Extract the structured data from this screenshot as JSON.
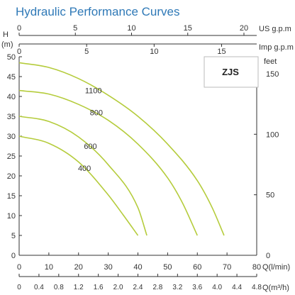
{
  "chart_data": {
    "type": "line",
    "title": "Hydraulic Performance Curves",
    "model_label": "ZJS",
    "xlabel": "Q(l/min)",
    "ylabel": "H (m)",
    "xlim": [
      0,
      80
    ],
    "ylim": [
      0,
      50
    ],
    "x_ticks": [
      "0",
      "10",
      "20",
      "30",
      "40",
      "50",
      "60",
      "70",
      "80"
    ],
    "y_ticks": [
      "0",
      "5",
      "10",
      "15",
      "20",
      "25",
      "30",
      "35",
      "40",
      "45",
      "50"
    ],
    "secondary_x_axis": {
      "label": "Q(m³/h)",
      "scale_per_primary": 0.06,
      "ticks": [
        "0",
        "0.4",
        "0.8",
        "1.2",
        "1.6",
        "2.0",
        "2.4",
        "2.8",
        "3.2",
        "3.6",
        "4.0",
        "4.4",
        "4.8"
      ]
    },
    "top_axis_us": {
      "label": "US g.p.m",
      "scale_per_primary": 0.2642,
      "ticks": [
        "0",
        "5",
        "10",
        "15",
        "20"
      ]
    },
    "top_axis_imp": {
      "label": "Imp g.p.m",
      "scale_per_primary": 0.22,
      "ticks": [
        "0",
        "5",
        "10",
        "15"
      ]
    },
    "right_axis": {
      "label": "feet",
      "scale_per_primary": 3.2808,
      "ticks": [
        "0",
        "50",
        "100",
        "150"
      ]
    },
    "grid": false,
    "series": [
      {
        "name": "400",
        "label_at": [
          22,
          22
        ],
        "x": [
          0,
          10,
          20,
          30,
          35,
          40
        ],
        "y": [
          30,
          28.2,
          23.5,
          15.2,
          10.2,
          5
        ]
      },
      {
        "name": "600",
        "label_at": [
          24,
          27.5
        ],
        "x": [
          0,
          10,
          20,
          30,
          40,
          43
        ],
        "y": [
          35,
          33.7,
          29.8,
          22.8,
          12,
          5
        ]
      },
      {
        "name": "800",
        "label_at": [
          26,
          36
        ],
        "x": [
          0,
          10,
          20,
          30,
          40,
          50,
          55,
          60
        ],
        "y": [
          41.5,
          40.6,
          38,
          34,
          28,
          19.5,
          13.2,
          5
        ]
      },
      {
        "name": "1100",
        "label_at": [
          25,
          41.5
        ],
        "x": [
          0,
          10,
          20,
          30,
          40,
          50,
          60,
          65,
          69
        ],
        "y": [
          48.5,
          47.3,
          44.5,
          40.3,
          35,
          28,
          18.8,
          12,
          5
        ]
      }
    ],
    "colors": {
      "curve": "#b5cc3c",
      "title": "#2f79b7",
      "axis": "#333333",
      "model_box_border": "#bbbbbb"
    }
  }
}
